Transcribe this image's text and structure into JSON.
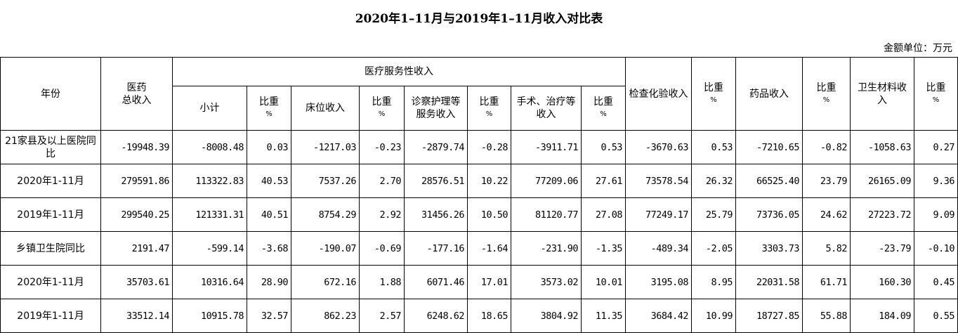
{
  "title": "2020年1–11月与2019年1–11月收入对比表",
  "unit": "金额单位：万元",
  "headers": {
    "year": "年份",
    "total": "医药\n总收入",
    "service_group": "医疗服务性收入",
    "subtotal": "小计",
    "ratio": "比重",
    "ratio_unit": "%",
    "bed": "床位收入",
    "diagnosis": "诊察护理等服务收入",
    "surgery": "手术、治疗等收入",
    "exam": "检查化验收入",
    "drug": "药品收入",
    "material": "卫生材料收入"
  },
  "rows": [
    {
      "label": "21家县及以上医院同比",
      "cells": [
        "-19948.39",
        "-8008.48",
        "0.03",
        "-1217.03",
        "-0.23",
        "-2879.74",
        "-0.28",
        "-3911.71",
        "0.53",
        "-3670.63",
        "0.53",
        "-7210.65",
        "-0.82",
        "-1058.63",
        "0.27"
      ]
    },
    {
      "label": "2020年1-11月",
      "cells": [
        "279591.86",
        "113322.83",
        "40.53",
        "7537.26",
        "2.70",
        "28576.51",
        "10.22",
        "77209.06",
        "27.61",
        "73578.54",
        "26.32",
        "66525.40",
        "23.79",
        "26165.09",
        "9.36"
      ]
    },
    {
      "label": "2019年1-11月",
      "cells": [
        "299540.25",
        "121331.31",
        "40.51",
        "8754.29",
        "2.92",
        "31456.26",
        "10.50",
        "81120.77",
        "27.08",
        "77249.17",
        "25.79",
        "73736.05",
        "24.62",
        "27223.72",
        "9.09"
      ]
    },
    {
      "label": "乡镇卫生院同比",
      "cells": [
        "2191.47",
        "-599.14",
        "-3.68",
        "-190.07",
        "-0.69",
        "-177.16",
        "-1.64",
        "-231.90",
        "-1.35",
        "-489.34",
        "-2.05",
        "3303.73",
        "5.82",
        "-23.79",
        "-0.10"
      ]
    },
    {
      "label": "2020年1-11月",
      "cells": [
        "35703.61",
        "10316.64",
        "28.90",
        "672.16",
        "1.88",
        "6071.46",
        "17.01",
        "3573.02",
        "10.01",
        "3195.08",
        "8.95",
        "22031.58",
        "61.71",
        "160.30",
        "0.45"
      ]
    },
    {
      "label": "2019年1-11月",
      "cells": [
        "33512.14",
        "10915.78",
        "32.57",
        "862.23",
        "2.57",
        "6248.62",
        "18.65",
        "3804.92",
        "11.35",
        "3684.42",
        "10.99",
        "18727.85",
        "55.88",
        "184.09",
        "0.55"
      ]
    }
  ]
}
